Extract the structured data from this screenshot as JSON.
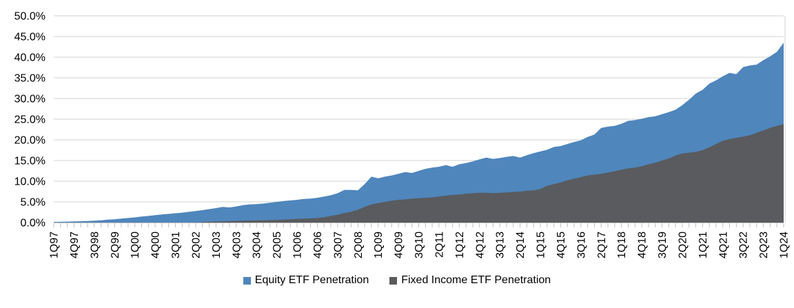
{
  "chart_data": {
    "type": "area",
    "title": "",
    "stacked": false,
    "grid": {
      "horizontal": true,
      "color": "#D9D9D9"
    },
    "axis_color": "#BFBFBF",
    "ylim": [
      0,
      50
    ],
    "y_tick_step": 5,
    "y_tick_labels": [
      "50.0%",
      "45.0%",
      "40.0%",
      "35.0%",
      "30.0%",
      "25.0%",
      "20.0%",
      "15.0%",
      "10.0%",
      "5.0%",
      "0.0%"
    ],
    "x_label_step": 3,
    "x_tick_labels": [
      "1Q97",
      "4Q97",
      "3Q98",
      "2Q99",
      "1Q00",
      "4Q00",
      "3Q01",
      "2Q02",
      "1Q03",
      "4Q03",
      "3Q04",
      "2Q05",
      "1Q06",
      "4Q06",
      "3Q07",
      "2Q08",
      "1Q09",
      "4Q09",
      "3Q10",
      "2Q11",
      "1Q12",
      "4Q12",
      "3Q13",
      "2Q14",
      "1Q15",
      "4Q15",
      "3Q16",
      "2Q17",
      "1Q18",
      "4Q18",
      "3Q19",
      "2Q20",
      "1Q21",
      "4Q21",
      "3Q22",
      "2Q23",
      "1Q24"
    ],
    "n_points": 109,
    "legend_position": "bottom",
    "series": [
      {
        "name": "Equity ETF Penetration",
        "color": "#4F86BC",
        "values": [
          0.15,
          0.18,
          0.22,
          0.28,
          0.32,
          0.38,
          0.45,
          0.55,
          0.7,
          0.8,
          0.95,
          1.1,
          1.25,
          1.45,
          1.6,
          1.8,
          1.95,
          2.1,
          2.25,
          2.4,
          2.6,
          2.8,
          3.0,
          3.25,
          3.5,
          3.8,
          3.65,
          3.9,
          4.2,
          4.4,
          4.45,
          4.6,
          4.8,
          5.0,
          5.2,
          5.35,
          5.5,
          5.7,
          5.8,
          6.0,
          6.3,
          6.6,
          7.1,
          7.9,
          7.9,
          7.8,
          9.3,
          11.1,
          10.7,
          11.1,
          11.4,
          11.8,
          12.2,
          12.0,
          12.5,
          13.0,
          13.3,
          13.5,
          13.9,
          13.5,
          14.1,
          14.4,
          14.8,
          15.3,
          15.7,
          15.4,
          15.6,
          15.9,
          16.1,
          15.7,
          16.3,
          16.8,
          17.2,
          17.6,
          18.3,
          18.5,
          19.0,
          19.5,
          19.9,
          20.7,
          21.3,
          22.9,
          23.2,
          23.4,
          23.9,
          24.6,
          24.8,
          25.1,
          25.5,
          25.7,
          26.2,
          26.7,
          27.3,
          28.4,
          29.7,
          31.2,
          32.1,
          33.6,
          34.4,
          35.4,
          36.2,
          35.9,
          37.6,
          38.0,
          38.2,
          39.3,
          40.2,
          41.3,
          43.5
        ]
      },
      {
        "name": "Fixed Income ETF Penetration",
        "color": "#595B5E",
        "values": [
          0,
          0,
          0,
          0,
          0,
          0,
          0,
          0,
          0,
          0,
          0,
          0,
          0,
          0,
          0,
          0,
          0,
          0,
          0,
          0,
          0,
          0,
          0.1,
          0.2,
          0.25,
          0.3,
          0.35,
          0.4,
          0.45,
          0.5,
          0.5,
          0.55,
          0.6,
          0.65,
          0.7,
          0.8,
          0.9,
          0.95,
          1.0,
          1.1,
          1.3,
          1.6,
          1.9,
          2.3,
          2.6,
          3.1,
          3.8,
          4.4,
          4.7,
          5.0,
          5.3,
          5.5,
          5.6,
          5.8,
          5.9,
          6.0,
          6.1,
          6.3,
          6.5,
          6.7,
          6.8,
          7.0,
          7.1,
          7.2,
          7.2,
          7.1,
          7.2,
          7.3,
          7.4,
          7.5,
          7.7,
          7.8,
          8.1,
          8.9,
          9.3,
          9.7,
          10.2,
          10.6,
          11.0,
          11.4,
          11.6,
          11.8,
          12.1,
          12.4,
          12.8,
          13.1,
          13.3,
          13.6,
          14.1,
          14.5,
          15.0,
          15.5,
          16.2,
          16.7,
          16.9,
          17.1,
          17.5,
          18.2,
          19.0,
          19.8,
          20.2,
          20.5,
          20.8,
          21.1,
          21.7,
          22.3,
          22.9,
          23.4,
          23.8
        ]
      }
    ]
  }
}
